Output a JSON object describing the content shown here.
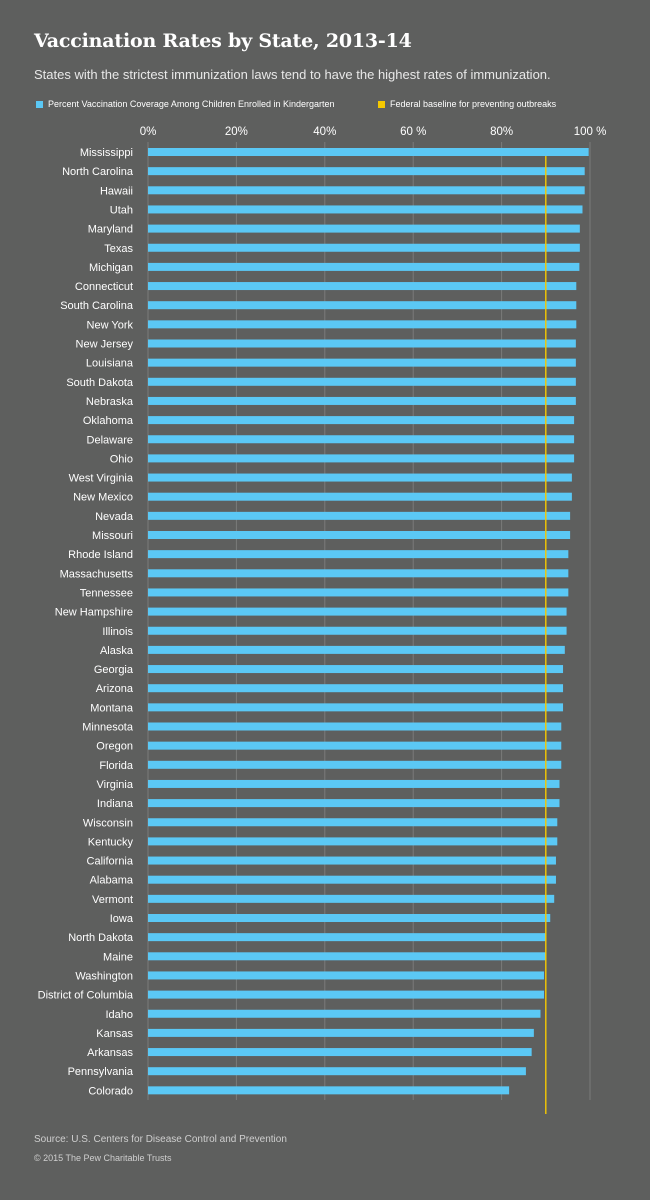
{
  "header": {
    "title": "Vaccination Rates by State, 2013-14",
    "subtitle": "States with the strictest immunization laws tend to have the highest rates of immunization."
  },
  "legend": {
    "coverage_label": "Percent Vaccination Coverage Among Children Enrolled in Kindergarten",
    "baseline_label": "Federal baseline for preventing outbreaks"
  },
  "colors": {
    "background": "#5e5f5e",
    "bar": "#5bc8f5",
    "baseline": "#f5c800",
    "gridline": "#7a7b7a"
  },
  "footer": {
    "source": "Source: U.S. Centers for Disease Control and Prevention",
    "copyright": "© 2015 The Pew Charitable Trusts"
  },
  "chart_data": {
    "type": "bar",
    "orientation": "horizontal",
    "xlim": [
      0,
      100
    ],
    "x_ticks": [
      "0%",
      "20%",
      "40%",
      "60 %",
      "80%",
      "100 %"
    ],
    "x_tick_values": [
      0,
      20,
      40,
      60,
      80,
      100
    ],
    "baseline_value": 90,
    "grid": true,
    "legend_position": "top",
    "categories": [
      "Mississippi",
      "North Carolina",
      "Hawaii",
      "Utah",
      "Maryland",
      "Texas",
      "Michigan",
      "Connecticut",
      "South Carolina",
      "New York",
      "New Jersey",
      "Louisiana",
      "South Dakota",
      "Nebraska",
      "Oklahoma",
      "Delaware",
      "Ohio",
      "West Virginia",
      "New Mexico",
      "Nevada",
      "Missouri",
      "Rhode Island",
      "Massachusetts",
      "Tennessee",
      "New Hampshire",
      "Illinois",
      "Alaska",
      "Georgia",
      "Arizona",
      "Montana",
      "Minnesota",
      "Oregon",
      "Florida",
      "Virginia",
      "Indiana",
      "Wisconsin",
      "Kentucky",
      "California",
      "Alabama",
      "Vermont",
      "Iowa",
      "North Dakota",
      "Maine",
      "Washington",
      "District of Columbia",
      "Idaho",
      "Kansas",
      "Arkansas",
      "Pennsylvania",
      "Colorado"
    ],
    "values": [
      99.7,
      98.8,
      98.8,
      98.3,
      97.7,
      97.7,
      97.6,
      96.9,
      96.9,
      96.9,
      96.8,
      96.8,
      96.8,
      96.8,
      96.4,
      96.4,
      96.4,
      95.9,
      95.9,
      95.5,
      95.5,
      95.1,
      95.1,
      95.1,
      94.7,
      94.7,
      94.3,
      93.9,
      93.9,
      93.9,
      93.5,
      93.5,
      93.5,
      93.1,
      93.1,
      92.6,
      92.6,
      92.3,
      92.3,
      91.9,
      91.0,
      90.0,
      90.0,
      89.6,
      89.6,
      88.8,
      87.3,
      86.8,
      85.5,
      81.7
    ]
  }
}
